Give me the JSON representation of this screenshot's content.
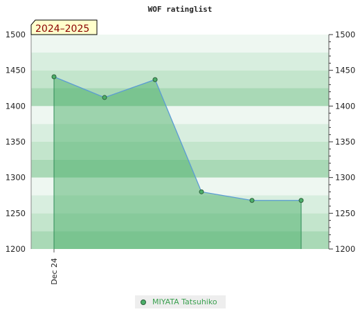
{
  "chart_data": {
    "type": "area",
    "title": "WOF ratinglist",
    "season_badge": "2024–2025",
    "ylim": [
      1200,
      1500
    ],
    "y_ticks": [
      1200,
      1250,
      1300,
      1350,
      1400,
      1450,
      1500
    ],
    "y_tick_labels": [
      "1200",
      "1250",
      "1300",
      "1350",
      "1400",
      "1450",
      "1500"
    ],
    "x_tick_labels": [
      "Dec 24"
    ],
    "series": [
      {
        "name": "MIYATA Tatsuhiko",
        "values": [
          1441,
          1412,
          1437,
          1280,
          1268,
          1268
        ]
      }
    ],
    "colors": {
      "line": "#5b9bd5",
      "fill": "#4caf6a",
      "marker": "#4caf6a",
      "marker_stroke": "#2d5f3a",
      "band_colors": [
        "#a9d9b6",
        "#c3e5cc",
        "#d8eedf",
        "#eef7f1"
      ],
      "legend_text": "#3aa04f",
      "badge_fill": "#ffffcc"
    }
  }
}
